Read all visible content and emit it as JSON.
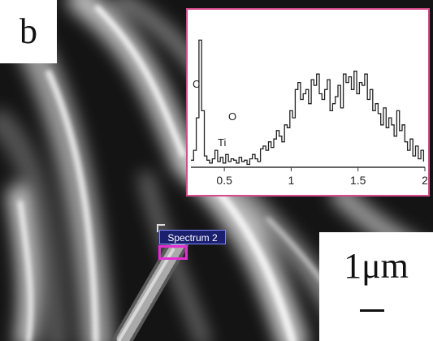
{
  "panel_letter": "b",
  "scale_bar": {
    "label": "1μm"
  },
  "spectrum_tag": "Spectrum 2",
  "inset": {
    "frame_color": "#d94a8c",
    "x_ticks": [
      "0.5",
      "1",
      "1.5",
      "2"
    ],
    "peak_labels": {
      "c": "C",
      "o": "O",
      "ti": "Ti"
    },
    "chart_data": {
      "type": "line",
      "xlim": [
        0.25,
        2.0
      ],
      "ylim": [
        0,
        100
      ],
      "x": [
        0.25,
        0.27,
        0.29,
        0.31,
        0.33,
        0.35,
        0.37,
        0.39,
        0.41,
        0.43,
        0.45,
        0.47,
        0.49,
        0.51,
        0.53,
        0.55,
        0.57,
        0.59,
        0.61,
        0.63,
        0.65,
        0.67,
        0.69,
        0.71,
        0.73,
        0.75,
        0.77,
        0.79,
        0.81,
        0.83,
        0.85,
        0.87,
        0.89,
        0.91,
        0.93,
        0.95,
        0.97,
        0.99,
        1.01,
        1.03,
        1.05,
        1.07,
        1.09,
        1.11,
        1.13,
        1.15,
        1.17,
        1.19,
        1.21,
        1.23,
        1.25,
        1.27,
        1.29,
        1.31,
        1.33,
        1.35,
        1.37,
        1.39,
        1.41,
        1.43,
        1.45,
        1.47,
        1.49,
        1.51,
        1.53,
        1.55,
        1.57,
        1.59,
        1.61,
        1.63,
        1.65,
        1.67,
        1.69,
        1.71,
        1.73,
        1.75,
        1.77,
        1.79,
        1.81,
        1.83,
        1.85,
        1.87,
        1.89,
        1.91,
        1.93,
        1.95,
        1.97,
        1.99
      ],
      "y": [
        5,
        12,
        35,
        90,
        40,
        8,
        5,
        3,
        6,
        12,
        4,
        7,
        3,
        9,
        4,
        6,
        5,
        3,
        7,
        4,
        5,
        2,
        6,
        9,
        6,
        4,
        13,
        15,
        12,
        18,
        14,
        20,
        26,
        22,
        18,
        30,
        28,
        40,
        35,
        55,
        60,
        48,
        52,
        55,
        45,
        62,
        58,
        66,
        52,
        48,
        55,
        62,
        40,
        45,
        50,
        58,
        42,
        66,
        60,
        64,
        55,
        68,
        52,
        60,
        58,
        66,
        48,
        55,
        40,
        45,
        38,
        30,
        42,
        28,
        35,
        30,
        22,
        40,
        26,
        30,
        18,
        12,
        20,
        8,
        15,
        6,
        12,
        4
      ]
    }
  }
}
